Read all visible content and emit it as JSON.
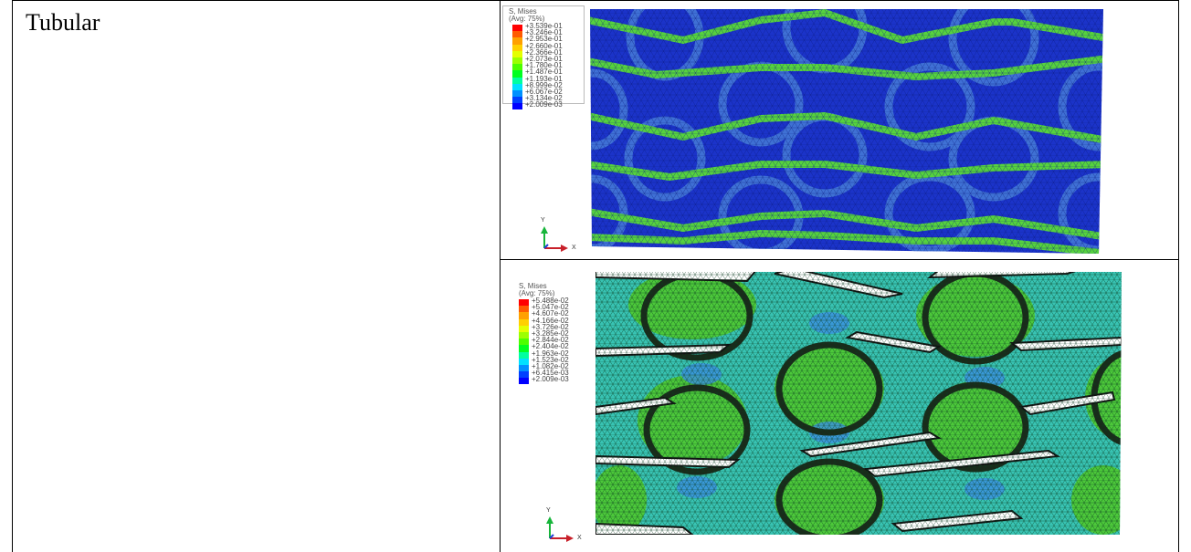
{
  "row_label": "Tubular",
  "panels": [
    {
      "legend_title": "S, Mises",
      "legend_subtitle": "(Avg: 75%)",
      "legend_values": [
        "+3.539e-01",
        "+3.246e-01",
        "+2.953e-01",
        "+2.660e-01",
        "+2.366e-01",
        "+2.073e-01",
        "+1.780e-01",
        "+1.487e-01",
        "+1.193e-01",
        "+8.999e-02",
        "+6.067e-02",
        "+3.134e-02",
        "+2.009e-03"
      ],
      "axis_y": "Y",
      "axis_x": "X"
    },
    {
      "legend_title": "S, Mises",
      "legend_subtitle": "(Avg: 75%)",
      "legend_values": [
        "+5.488e-02",
        "+5.047e-02",
        "+4.607e-02",
        "+4.166e-02",
        "+3.726e-02",
        "+3.285e-02",
        "+2.844e-02",
        "+2.404e-02",
        "+1.963e-02",
        "+1.523e-02",
        "+1.082e-02",
        "+6.415e-03",
        "+2.009e-03"
      ],
      "axis_y": "Y",
      "axis_x": "X"
    }
  ],
  "colors": {
    "scale": [
      "#ff0000",
      "#ff5a00",
      "#ffa000",
      "#ffd000",
      "#e4ff00",
      "#9cff00",
      "#4cff00",
      "#00ff20",
      "#00ffa0",
      "#00e0ff",
      "#0090ff",
      "#0040ff",
      "#0000ff"
    ],
    "mesh_blue": "#1b33c9",
    "band_green": "#4fd43c",
    "deform_green": "#4cc83a",
    "deform_cyan": "#33c6b6"
  }
}
